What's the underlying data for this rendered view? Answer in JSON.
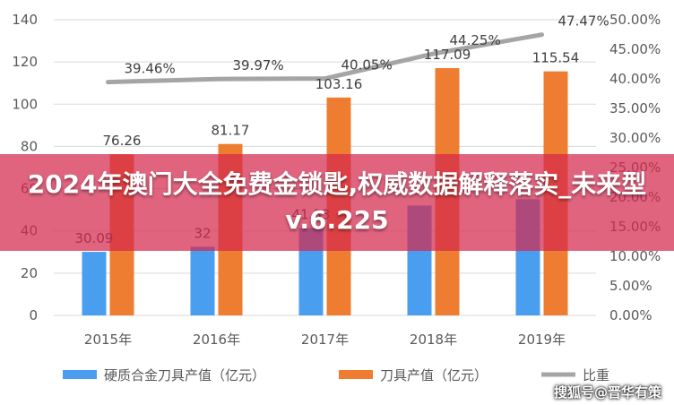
{
  "chart_data": {
    "type": "bar",
    "categories": [
      "2015年",
      "2016年",
      "2017年",
      "2018年",
      "2019年"
    ],
    "series": [
      {
        "name": "硬质合金刀具产值（亿元）",
        "type": "bar",
        "axis": "left",
        "color": "#4a9ef0",
        "values": [
          30.09,
          32.5,
          41.33,
          52.0,
          55.0
        ],
        "labels": [
          "30.09",
          "32",
          "41.33",
          "",
          ""
        ]
      },
      {
        "name": "刀具产值（亿元）",
        "type": "bar",
        "axis": "left",
        "color": "#ee7d31",
        "values": [
          76.26,
          81.17,
          103.16,
          117.09,
          115.54
        ],
        "labels": [
          "76.26",
          "81.17",
          "103.16",
          "117.09",
          "115.54"
        ]
      },
      {
        "name": "比重",
        "type": "line",
        "axis": "right",
        "color": "#a5a5a5",
        "values": [
          39.46,
          39.97,
          40.05,
          44.25,
          47.47
        ],
        "labels": [
          "39.46%",
          "39.97%",
          "40.05%",
          "44.25%",
          "47.47%"
        ]
      }
    ],
    "y_left": {
      "min": 0,
      "max": 140,
      "step": 20,
      "ticks": [
        "0",
        "20",
        "40",
        "60",
        "80",
        "100",
        "120",
        "140"
      ]
    },
    "y_right": {
      "min": 0,
      "max": 50,
      "step": 5,
      "ticks": [
        "0.00%",
        "5.00%",
        "10.00%",
        "15.00%",
        "20.00%",
        "25.00%",
        "30.00%",
        "35.00%",
        "40.00%",
        "45.00%",
        "50.00%"
      ]
    },
    "grid": true,
    "legend_position": "bottom"
  },
  "overlay": {
    "banner_text": "2024年澳门大全免费金锁匙,权威数据解释落实_未来型v.6.225",
    "watermark": "搜狐号@晋华有策"
  }
}
